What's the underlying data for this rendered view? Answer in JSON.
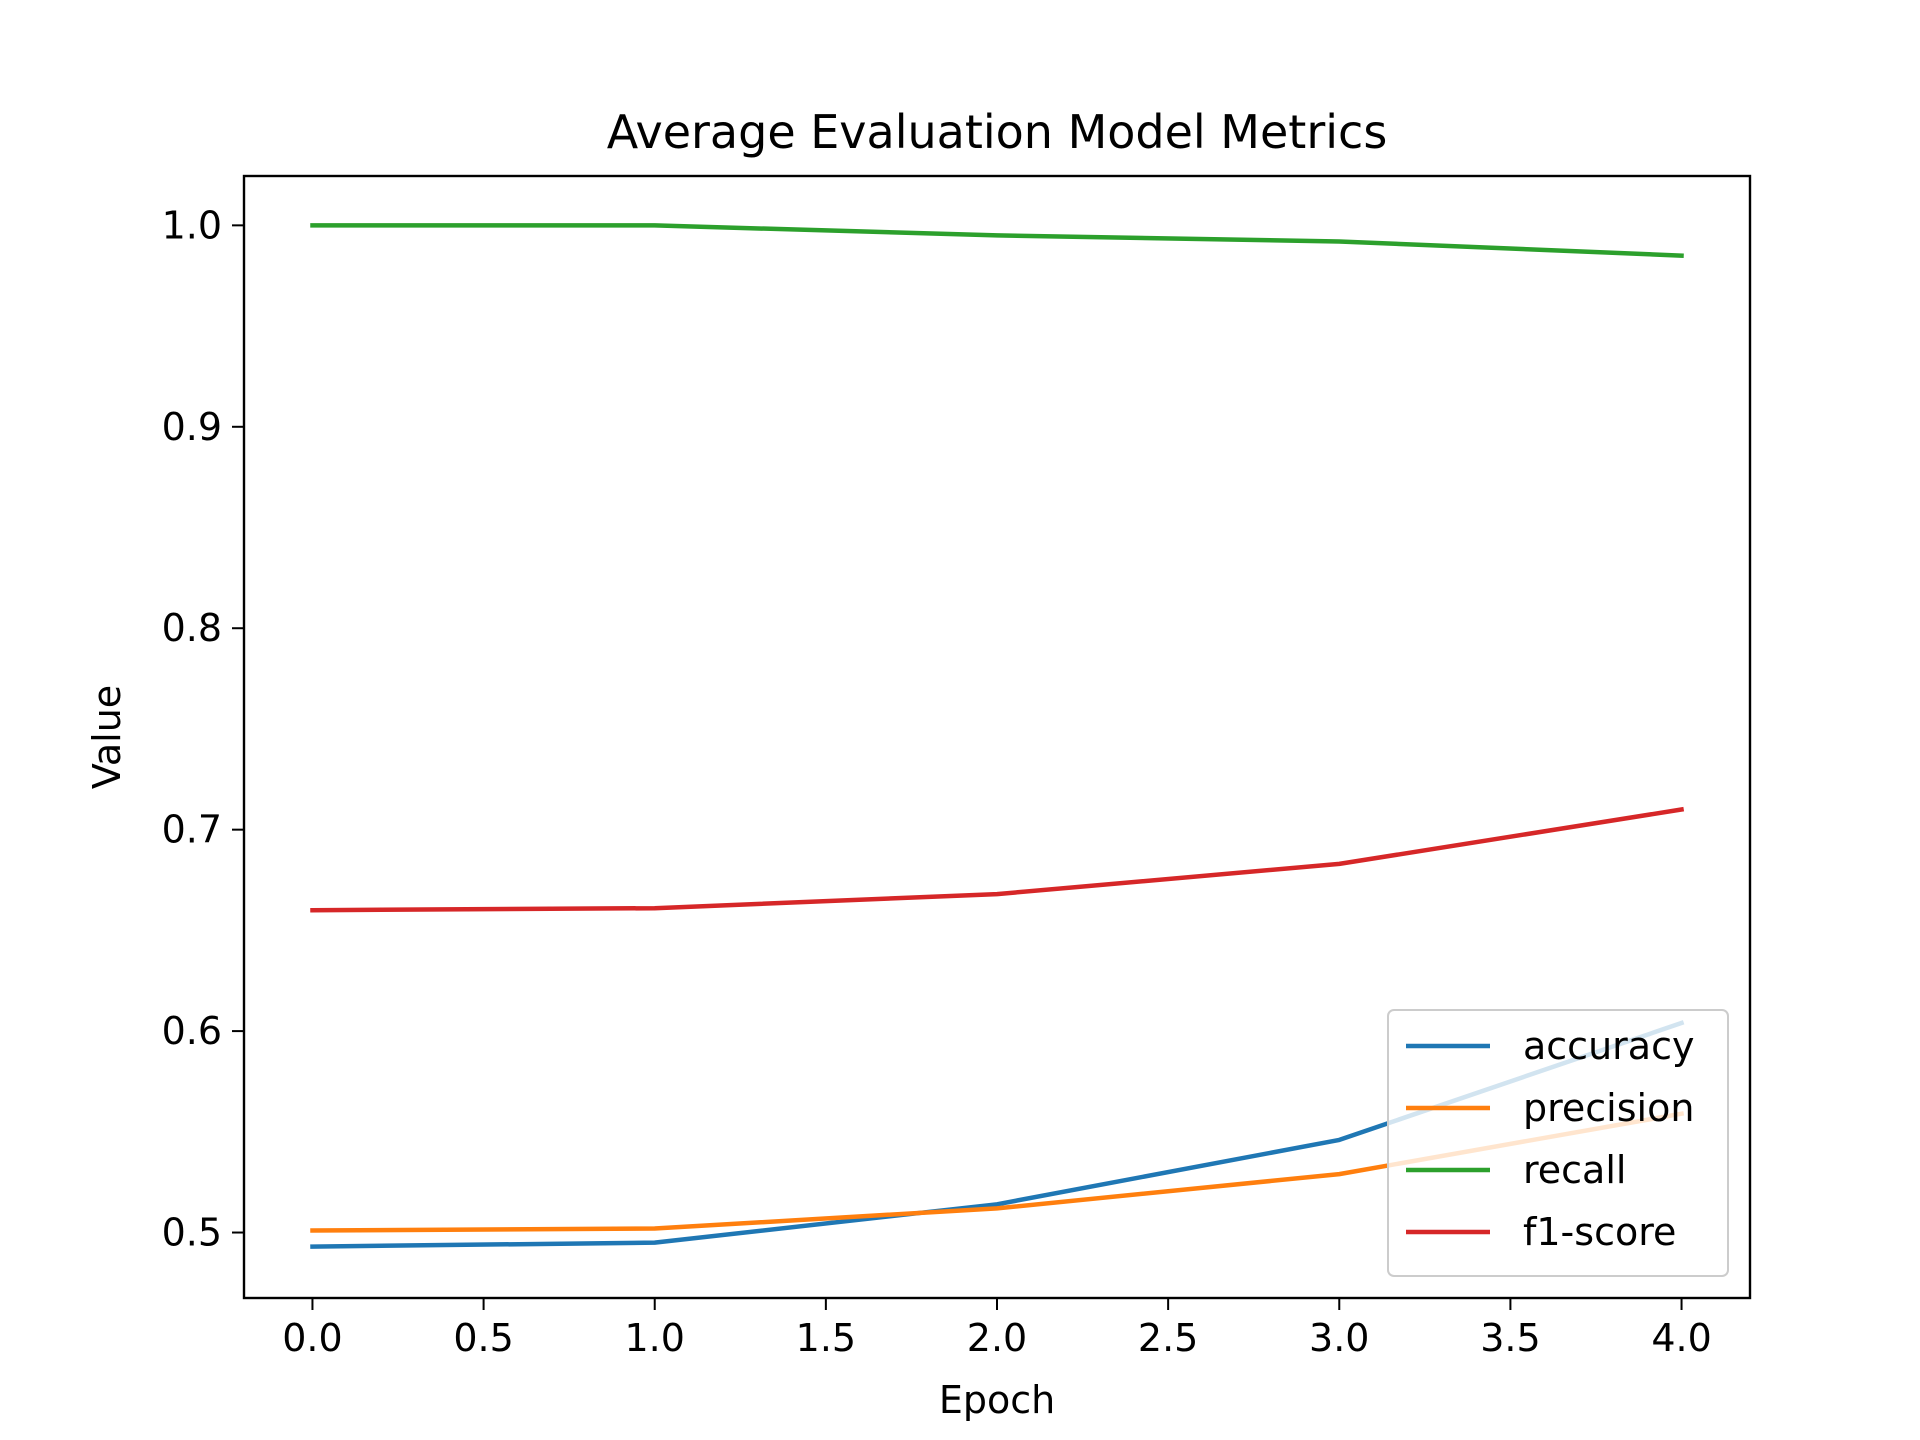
{
  "chart_data": {
    "type": "line",
    "title": "Average Evaluation Model Metrics",
    "xlabel": "Epoch",
    "ylabel": "Value",
    "x": [
      0,
      1,
      2,
      3,
      4
    ],
    "xlim": [
      -0.2,
      4.2
    ],
    "ylim": [
      0.4675,
      1.0245
    ],
    "xticks": [
      "0.0",
      "0.5",
      "1.0",
      "1.5",
      "2.0",
      "2.5",
      "3.0",
      "3.5",
      "4.0"
    ],
    "yticks": [
      "0.5",
      "0.6",
      "0.7",
      "0.8",
      "0.9",
      "1.0"
    ],
    "grid": false,
    "legend_position": "lower-right",
    "series": [
      {
        "name": "accuracy",
        "color": "#1f77b4",
        "values": [
          0.493,
          0.495,
          0.514,
          0.546,
          0.604
        ]
      },
      {
        "name": "precision",
        "color": "#ff7f0e",
        "values": [
          0.501,
          0.502,
          0.512,
          0.529,
          0.559
        ]
      },
      {
        "name": "recall",
        "color": "#2ca02c",
        "values": [
          1.0,
          1.0,
          0.995,
          0.992,
          0.985
        ]
      },
      {
        "name": "f1-score",
        "color": "#d62728",
        "values": [
          0.66,
          0.661,
          0.668,
          0.683,
          0.71
        ]
      }
    ]
  }
}
